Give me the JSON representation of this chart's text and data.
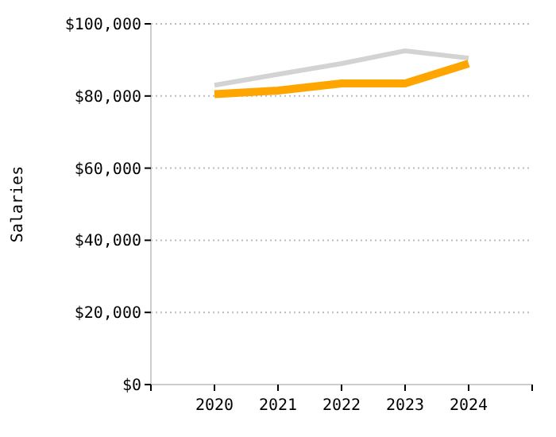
{
  "chart_data": {
    "type": "line",
    "ylabel": "Salaries",
    "x": [
      2020,
      2021,
      2022,
      2023,
      2024
    ],
    "series": [
      {
        "color": "#d3d3d3",
        "values": [
          83000,
          86000,
          89000,
          92500,
          90500
        ]
      },
      {
        "color": "#ffa500",
        "values": [
          80500,
          81500,
          83500,
          83500,
          89000
        ]
      }
    ],
    "xlim": [
      2019,
      2025
    ],
    "xticks": [
      {
        "value": 2019,
        "label": null
      },
      2020,
      2021,
      2022,
      2023,
      2024,
      {
        "value": 2025,
        "label": null
      }
    ],
    "ylim": [
      0,
      100000
    ],
    "yticks": [
      {
        "value": 0,
        "label": "$0"
      },
      {
        "value": 20000,
        "label": "$20,000"
      },
      {
        "value": 40000,
        "label": "$40,000"
      },
      {
        "value": 60000,
        "label": "$60,000"
      },
      {
        "value": 80000,
        "label": "$80,000"
      },
      {
        "value": 100000,
        "label": "$100,000"
      }
    ],
    "grid": "y",
    "marker": "none",
    "line_style": "solid"
  }
}
